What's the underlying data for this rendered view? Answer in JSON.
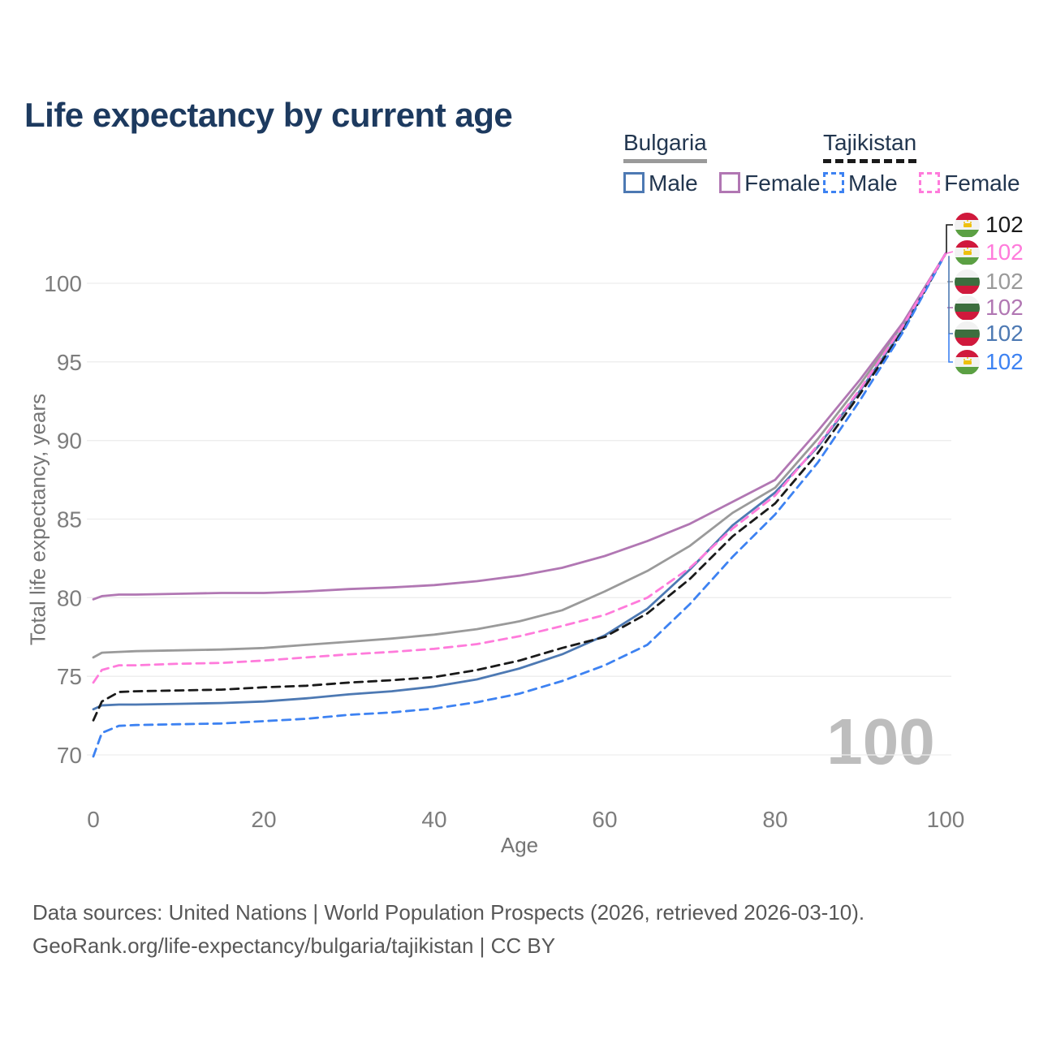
{
  "title": "Life expectancy by current age",
  "legend": {
    "groups": [
      {
        "name": "Bulgaria",
        "line_style": "solid",
        "underline_color": "#9a9a9a",
        "items": [
          {
            "label": "Male",
            "color": "#4d79b3"
          },
          {
            "label": "Female",
            "color": "#b177b3"
          }
        ]
      },
      {
        "name": "Tajikistan",
        "line_style": "dashed",
        "underline_color": "#1a1a1a",
        "items": [
          {
            "label": "Male",
            "color": "#3d82f2"
          },
          {
            "label": "Female",
            "color": "#ff7bdb"
          }
        ]
      }
    ]
  },
  "chart_data": {
    "type": "line",
    "title": "Life expectancy by current age",
    "xlabel": "Age",
    "ylabel": "Total life expectancy, years",
    "xlim": [
      0,
      100
    ],
    "ylim": [
      69.5,
      102.5
    ],
    "xticks": [
      0,
      20,
      40,
      60,
      80,
      100
    ],
    "yticks": [
      70,
      75,
      80,
      85,
      90,
      95,
      100
    ],
    "grid": "horizontal",
    "grid_color": "#ededed",
    "tick_color": "#7d7d7d",
    "watermark": "100",
    "watermark_color": "#bdbdbd",
    "x": [
      0,
      1,
      3,
      5,
      10,
      15,
      20,
      25,
      30,
      35,
      40,
      45,
      50,
      55,
      60,
      65,
      70,
      75,
      80,
      85,
      90,
      95,
      100
    ],
    "series": [
      {
        "name": "Bulgaria",
        "country": "bulgaria",
        "color": "#9a9a9a",
        "dash": false,
        "values": [
          76.2,
          76.5,
          76.55,
          76.6,
          76.65,
          76.7,
          76.8,
          77.0,
          77.2,
          77.4,
          77.65,
          78.0,
          78.5,
          79.2,
          80.4,
          81.7,
          83.3,
          85.4,
          87.0,
          90.1,
          93.6,
          97.4,
          101.9
        ]
      },
      {
        "name": "Bulgaria Female",
        "country": "bulgaria",
        "color": "#b177b3",
        "dash": false,
        "values": [
          79.9,
          80.1,
          80.2,
          80.2,
          80.25,
          80.3,
          80.3,
          80.4,
          80.55,
          80.65,
          80.8,
          81.05,
          81.4,
          81.9,
          82.65,
          83.6,
          84.7,
          86.1,
          87.5,
          90.6,
          93.9,
          97.5,
          101.9
        ]
      },
      {
        "name": "Bulgaria Male",
        "country": "bulgaria",
        "color": "#4d79b3",
        "dash": false,
        "values": [
          72.9,
          73.15,
          73.2,
          73.2,
          73.25,
          73.3,
          73.4,
          73.6,
          73.85,
          74.05,
          74.35,
          74.8,
          75.5,
          76.4,
          77.6,
          79.3,
          81.8,
          84.6,
          86.7,
          89.6,
          93.2,
          97.1,
          101.9
        ]
      },
      {
        "name": "Tajikistan",
        "country": "tajikistan",
        "color": "#1a1a1a",
        "dash": true,
        "values": [
          72.2,
          73.4,
          74.0,
          74.05,
          74.1,
          74.15,
          74.3,
          74.4,
          74.6,
          74.75,
          74.95,
          75.4,
          76.0,
          76.8,
          77.5,
          79.0,
          81.2,
          83.9,
          86.0,
          89.2,
          93.0,
          97.0,
          101.9
        ]
      },
      {
        "name": "Tajikistan Male",
        "country": "tajikistan",
        "color": "#3d82f2",
        "dash": true,
        "values": [
          69.9,
          71.4,
          71.85,
          71.9,
          71.95,
          72.0,
          72.15,
          72.3,
          72.55,
          72.7,
          72.95,
          73.35,
          73.9,
          74.7,
          75.7,
          77.0,
          79.6,
          82.6,
          85.3,
          88.6,
          92.6,
          96.9,
          101.9
        ]
      },
      {
        "name": "Tajikistan Female",
        "country": "tajikistan",
        "color": "#ff7bdb",
        "dash": true,
        "values": [
          74.6,
          75.4,
          75.7,
          75.7,
          75.8,
          75.85,
          76.0,
          76.2,
          76.4,
          76.55,
          76.75,
          77.05,
          77.55,
          78.2,
          78.9,
          80.0,
          81.9,
          84.4,
          86.5,
          89.7,
          93.3,
          97.3,
          101.9
        ]
      }
    ],
    "end_labels": [
      {
        "value": "102",
        "series": "Tajikistan",
        "country": "tajikistan",
        "color": "#1a1a1a"
      },
      {
        "value": "102",
        "series": "Tajikistan Female",
        "country": "tajikistan",
        "color": "#ff7bdb"
      },
      {
        "value": "102",
        "series": "Bulgaria",
        "country": "bulgaria",
        "color": "#9a9a9a"
      },
      {
        "value": "102",
        "series": "Bulgaria Female",
        "country": "bulgaria",
        "color": "#b177b3"
      },
      {
        "value": "102",
        "series": "Bulgaria Male",
        "country": "bulgaria",
        "color": "#4d79b3"
      },
      {
        "value": "102",
        "series": "Tajikistan Male",
        "country": "tajikistan",
        "color": "#3d82f2"
      }
    ],
    "legend_position": "top-right"
  },
  "flags": {
    "bulgaria": {
      "stripes": [
        [
          "#f2f2f2",
          34
        ],
        [
          "#3c6e3e",
          33
        ],
        [
          "#d0193c",
          33
        ]
      ],
      "emblem": false
    },
    "tajikistan": {
      "stripes": [
        [
          "#d0193c",
          31
        ],
        [
          "#f2f2f2",
          38
        ],
        [
          "#5ba043",
          31
        ]
      ],
      "emblem": true
    }
  },
  "footer": {
    "line1": "Data sources: United Nations | World Population Prospects (2026, retrieved 2026-03-10).",
    "line2": "GeoRank.org/life-expectancy/bulgaria/tajikistan | CC BY"
  }
}
